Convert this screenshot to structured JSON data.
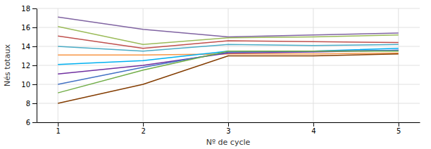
{
  "chart_data": {
    "type": "line",
    "xlabel": "Nº de cycle",
    "ylabel": "Nés totaux",
    "x": [
      1,
      2,
      3,
      4,
      5
    ],
    "series": [
      {
        "color": "#8064a2",
        "values": [
          17.1,
          15.8,
          15.0,
          15.2,
          15.4
        ]
      },
      {
        "color": "#9bbb59",
        "values": [
          16.1,
          14.2,
          14.9,
          15.0,
          15.2
        ]
      },
      {
        "color": "#c0504d",
        "values": [
          15.1,
          13.8,
          14.6,
          14.5,
          14.4
        ]
      },
      {
        "color": "#4bacc6",
        "values": [
          14.0,
          13.5,
          14.2,
          14.1,
          14.2
        ]
      },
      {
        "color": "#f79646",
        "values": [
          13.1,
          13.1,
          13.2,
          13.2,
          13.3
        ]
      },
      {
        "color": "#00b0f0",
        "values": [
          12.1,
          12.5,
          13.5,
          13.5,
          13.8
        ]
      },
      {
        "color": "#7030a0",
        "values": [
          11.1,
          12.0,
          13.3,
          13.4,
          13.6
        ]
      },
      {
        "color": "#4472c4",
        "values": [
          10.0,
          11.8,
          13.4,
          13.5,
          13.6
        ]
      },
      {
        "color": "#70ad47",
        "values": [
          9.1,
          11.5,
          13.5,
          13.5,
          13.5
        ]
      },
      {
        "color": "#833c00",
        "values": [
          8.0,
          10.0,
          13.0,
          13.0,
          13.2
        ]
      }
    ],
    "xlim": [
      0.75,
      5.25
    ],
    "xticks": [
      1,
      2,
      3,
      4,
      5
    ],
    "ylim": [
      6,
      18
    ],
    "yticks": [
      6,
      8,
      10,
      12,
      14,
      16,
      18
    ],
    "grid": true
  }
}
